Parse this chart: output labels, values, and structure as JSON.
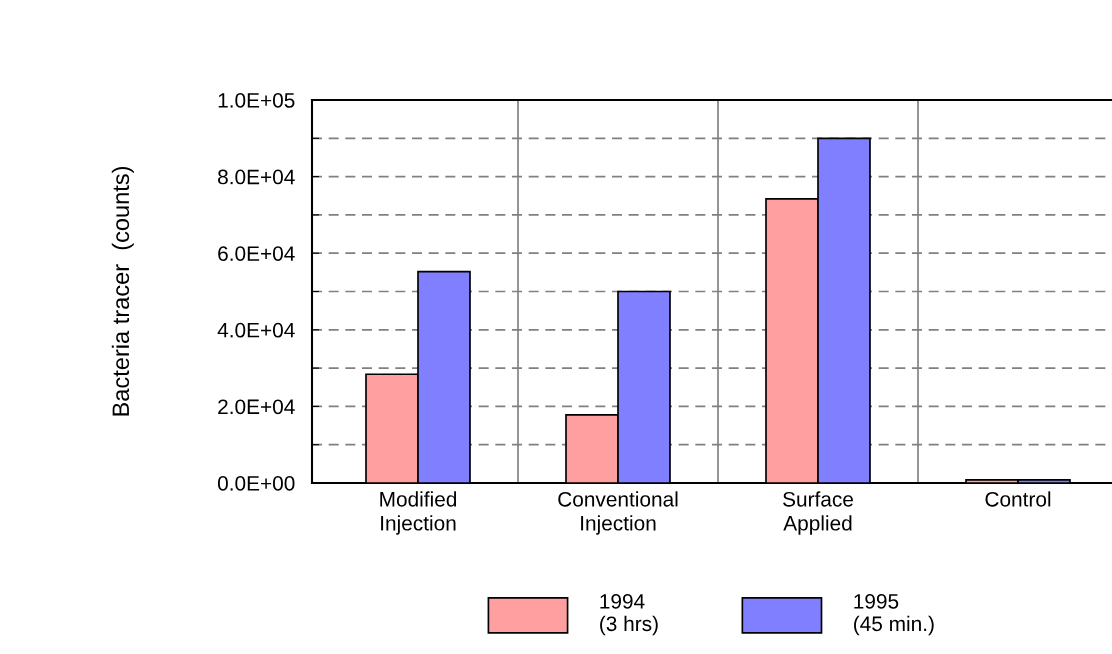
{
  "chart_data": {
    "type": "bar",
    "ylabel": "Bacteria tracer  (counts)",
    "categories": [
      "Modified\nInjection",
      "Conventional\nInjection",
      "Surface\nApplied",
      "Control"
    ],
    "series": [
      {
        "name": "1994\n(3 hrs)",
        "color": "#ff9f9f",
        "values": [
          28400,
          17800,
          74200,
          800
        ]
      },
      {
        "name": "1995\n(45 min.)",
        "color": "#7f7fff",
        "values": [
          55200,
          50000,
          90000,
          800
        ]
      }
    ],
    "ylim": [
      0,
      100000
    ],
    "yticks": [
      {
        "value": 0,
        "label": "0.0E+00"
      },
      {
        "value": 10000,
        "label": null
      },
      {
        "value": 20000,
        "label": "2.0E+04"
      },
      {
        "value": 30000,
        "label": null
      },
      {
        "value": 40000,
        "label": "4.0E+04"
      },
      {
        "value": 50000,
        "label": null
      },
      {
        "value": 60000,
        "label": "6.0E+04"
      },
      {
        "value": 70000,
        "label": null
      },
      {
        "value": 80000,
        "label": "8.0E+04"
      },
      {
        "value": 90000,
        "label": null
      },
      {
        "value": 100000,
        "label": "1.0E+05"
      }
    ],
    "grid": true,
    "legend": "bottom"
  }
}
